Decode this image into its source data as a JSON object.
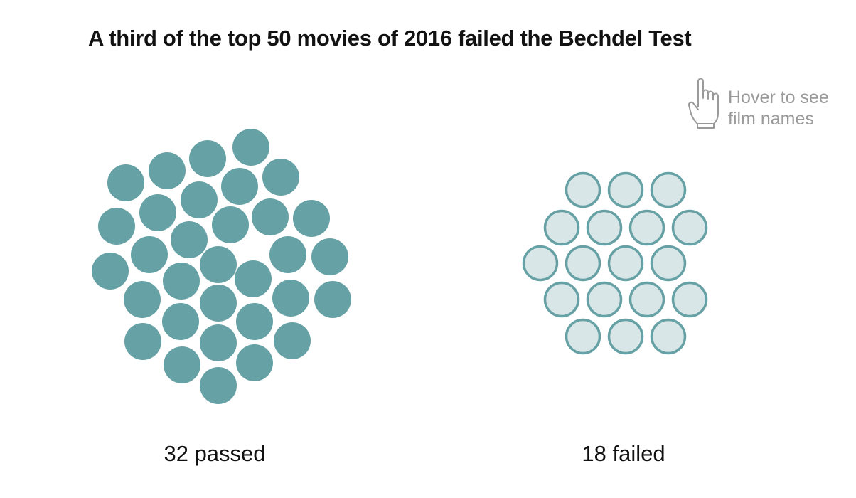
{
  "title": "A third of the top 50 movies of 2016 failed the Bechdel Test",
  "hint": {
    "icon": "pointing-hand-icon",
    "line1": "Hover to see",
    "line2": "film names"
  },
  "colors": {
    "passed_fill": "#66a1a5",
    "failed_fill": "#d9e6e7",
    "failed_stroke": "#66a1a5",
    "hint_gray": "#9a9a9a"
  },
  "chart_data": {
    "type": "bubble-cluster",
    "title": "A third of the top 50 movies of 2016 failed the Bechdel Test",
    "total": 50,
    "groups": [
      {
        "name": "passed",
        "count": 32,
        "label": "32 passed"
      },
      {
        "name": "failed",
        "count": 18,
        "label": "18 failed"
      }
    ]
  }
}
